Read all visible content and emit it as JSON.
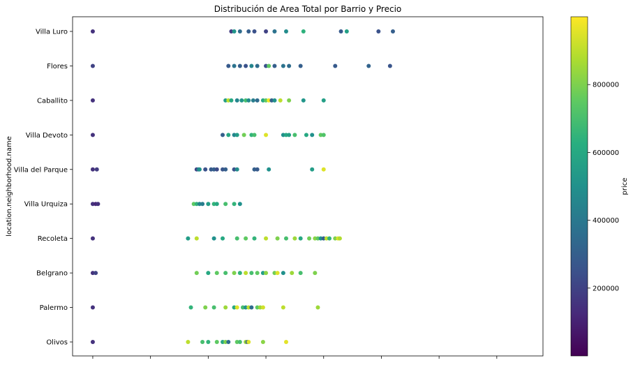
{
  "chart_data": {
    "type": "scatter",
    "title": "Distribución de Area Total por Barrio y Precio",
    "xlabel": "",
    "ylabel": "location.neighborhood.name",
    "x_tick_labels_visible": false,
    "grid": false,
    "categories": [
      "Olivos",
      "Palermo",
      "Belgrano",
      "Recoleta",
      "Villa Urquiza",
      "Villa del Parque",
      "Villa Devoto",
      "Caballito",
      "Flores",
      "Villa Luro"
    ],
    "colorbar": {
      "label": "price",
      "colormap": "viridis",
      "range": [
        0,
        1000000
      ],
      "ticks": [
        200000,
        400000,
        600000,
        800000
      ],
      "tick_labels": [
        "200000",
        "400000",
        "600000",
        "800000"
      ]
    },
    "points": [
      {
        "category": "Villa Luro",
        "x": 0,
        "price": 150000
      },
      {
        "category": "Villa Luro",
        "x": 240,
        "price": 180000
      },
      {
        "category": "Villa Luro",
        "x": 245,
        "price": 520000
      },
      {
        "category": "Villa Luro",
        "x": 255,
        "price": 350000
      },
      {
        "category": "Villa Luro",
        "x": 270,
        "price": 300000
      },
      {
        "category": "Villa Luro",
        "x": 280,
        "price": 250000
      },
      {
        "category": "Villa Luro",
        "x": 300,
        "price": 200000
      },
      {
        "category": "Villa Luro",
        "x": 315,
        "price": 380000
      },
      {
        "category": "Villa Luro",
        "x": 335,
        "price": 480000
      },
      {
        "category": "Villa Luro",
        "x": 365,
        "price": 640000
      },
      {
        "category": "Villa Luro",
        "x": 430,
        "price": 280000
      },
      {
        "category": "Villa Luro",
        "x": 440,
        "price": 560000
      },
      {
        "category": "Villa Luro",
        "x": 495,
        "price": 250000
      },
      {
        "category": "Villa Luro",
        "x": 520,
        "price": 300000
      },
      {
        "category": "Flores",
        "x": 0,
        "price": 200000
      },
      {
        "category": "Flores",
        "x": 235,
        "price": 280000
      },
      {
        "category": "Flores",
        "x": 245,
        "price": 380000
      },
      {
        "category": "Flores",
        "x": 255,
        "price": 300000
      },
      {
        "category": "Flores",
        "x": 265,
        "price": 250000
      },
      {
        "category": "Flores",
        "x": 275,
        "price": 450000
      },
      {
        "category": "Flores",
        "x": 285,
        "price": 350000
      },
      {
        "category": "Flores",
        "x": 300,
        "price": 250000
      },
      {
        "category": "Flores",
        "x": 305,
        "price": 750000
      },
      {
        "category": "Flores",
        "x": 315,
        "price": 300000
      },
      {
        "category": "Flores",
        "x": 330,
        "price": 380000
      },
      {
        "category": "Flores",
        "x": 340,
        "price": 350000
      },
      {
        "category": "Flores",
        "x": 360,
        "price": 300000
      },
      {
        "category": "Flores",
        "x": 420,
        "price": 280000
      },
      {
        "category": "Flores",
        "x": 478,
        "price": 320000
      },
      {
        "category": "Flores",
        "x": 515,
        "price": 260000
      },
      {
        "category": "Caballito",
        "x": 0,
        "price": 150000
      },
      {
        "category": "Caballito",
        "x": 230,
        "price": 550000
      },
      {
        "category": "Caballito",
        "x": 235,
        "price": 900000
      },
      {
        "category": "Caballito",
        "x": 240,
        "price": 600000
      },
      {
        "category": "Caballito",
        "x": 250,
        "price": 450000
      },
      {
        "category": "Caballito",
        "x": 258,
        "price": 520000
      },
      {
        "category": "Caballito",
        "x": 265,
        "price": 700000
      },
      {
        "category": "Caballito",
        "x": 270,
        "price": 480000
      },
      {
        "category": "Caballito",
        "x": 278,
        "price": 420000
      },
      {
        "category": "Caballito",
        "x": 285,
        "price": 350000
      },
      {
        "category": "Caballito",
        "x": 295,
        "price": 600000
      },
      {
        "category": "Caballito",
        "x": 300,
        "price": 750000
      },
      {
        "category": "Caballito",
        "x": 305,
        "price": 980000
      },
      {
        "category": "Caballito",
        "x": 310,
        "price": 300000
      },
      {
        "category": "Caballito",
        "x": 315,
        "price": 500000
      },
      {
        "category": "Caballito",
        "x": 325,
        "price": 900000
      },
      {
        "category": "Caballito",
        "x": 340,
        "price": 800000
      },
      {
        "category": "Caballito",
        "x": 365,
        "price": 520000
      },
      {
        "category": "Caballito",
        "x": 400,
        "price": 560000
      },
      {
        "category": "Villa Devoto",
        "x": 0,
        "price": 150000
      },
      {
        "category": "Villa Devoto",
        "x": 225,
        "price": 300000
      },
      {
        "category": "Villa Devoto",
        "x": 235,
        "price": 600000
      },
      {
        "category": "Villa Devoto",
        "x": 245,
        "price": 450000
      },
      {
        "category": "Villa Devoto",
        "x": 250,
        "price": 550000
      },
      {
        "category": "Villa Devoto",
        "x": 262,
        "price": 780000
      },
      {
        "category": "Villa Devoto",
        "x": 275,
        "price": 650000
      },
      {
        "category": "Villa Devoto",
        "x": 280,
        "price": 700000
      },
      {
        "category": "Villa Devoto",
        "x": 300,
        "price": 950000
      },
      {
        "category": "Villa Devoto",
        "x": 330,
        "price": 500000
      },
      {
        "category": "Villa Devoto",
        "x": 335,
        "price": 600000
      },
      {
        "category": "Villa Devoto",
        "x": 340,
        "price": 560000
      },
      {
        "category": "Villa Devoto",
        "x": 350,
        "price": 700000
      },
      {
        "category": "Villa Devoto",
        "x": 370,
        "price": 600000
      },
      {
        "category": "Villa Devoto",
        "x": 380,
        "price": 500000
      },
      {
        "category": "Villa Devoto",
        "x": 395,
        "price": 750000
      },
      {
        "category": "Villa Devoto",
        "x": 400,
        "price": 720000
      },
      {
        "category": "Villa del Parque",
        "x": 0,
        "price": 150000
      },
      {
        "category": "Villa del Parque",
        "x": 7,
        "price": 180000
      },
      {
        "category": "Villa del Parque",
        "x": 180,
        "price": 200000
      },
      {
        "category": "Villa del Parque",
        "x": 183,
        "price": 400000
      },
      {
        "category": "Villa del Parque",
        "x": 185,
        "price": 500000
      },
      {
        "category": "Villa del Parque",
        "x": 195,
        "price": 250000
      },
      {
        "category": "Villa del Parque",
        "x": 205,
        "price": 280000
      },
      {
        "category": "Villa del Parque",
        "x": 210,
        "price": 300000
      },
      {
        "category": "Villa del Parque",
        "x": 215,
        "price": 230000
      },
      {
        "category": "Villa del Parque",
        "x": 225,
        "price": 260000
      },
      {
        "category": "Villa del Parque",
        "x": 230,
        "price": 300000
      },
      {
        "category": "Villa del Parque",
        "x": 245,
        "price": 250000
      },
      {
        "category": "Villa del Parque",
        "x": 250,
        "price": 480000
      },
      {
        "category": "Villa del Parque",
        "x": 280,
        "price": 300000
      },
      {
        "category": "Villa del Parque",
        "x": 285,
        "price": 280000
      },
      {
        "category": "Villa del Parque",
        "x": 305,
        "price": 500000
      },
      {
        "category": "Villa del Parque",
        "x": 380,
        "price": 550000
      },
      {
        "category": "Villa del Parque",
        "x": 400,
        "price": 950000
      },
      {
        "category": "Villa Urquiza",
        "x": 0,
        "price": 150000
      },
      {
        "category": "Villa Urquiza",
        "x": 5,
        "price": 120000
      },
      {
        "category": "Villa Urquiza",
        "x": 9,
        "price": 150000
      },
      {
        "category": "Villa Urquiza",
        "x": 175,
        "price": 750000
      },
      {
        "category": "Villa Urquiza",
        "x": 180,
        "price": 650000
      },
      {
        "category": "Villa Urquiza",
        "x": 185,
        "price": 450000
      },
      {
        "category": "Villa Urquiza",
        "x": 190,
        "price": 420000
      },
      {
        "category": "Villa Urquiza",
        "x": 200,
        "price": 550000
      },
      {
        "category": "Villa Urquiza",
        "x": 210,
        "price": 650000
      },
      {
        "category": "Villa Urquiza",
        "x": 215,
        "price": 600000
      },
      {
        "category": "Villa Urquiza",
        "x": 230,
        "price": 700000
      },
      {
        "category": "Villa Urquiza",
        "x": 245,
        "price": 650000
      },
      {
        "category": "Villa Urquiza",
        "x": 255,
        "price": 500000
      },
      {
        "category": "Recoleta",
        "x": 0,
        "price": 150000
      },
      {
        "category": "Recoleta",
        "x": 165,
        "price": 550000
      },
      {
        "category": "Recoleta",
        "x": 180,
        "price": 900000
      },
      {
        "category": "Recoleta",
        "x": 210,
        "price": 500000
      },
      {
        "category": "Recoleta",
        "x": 225,
        "price": 600000
      },
      {
        "category": "Recoleta",
        "x": 250,
        "price": 700000
      },
      {
        "category": "Recoleta",
        "x": 265,
        "price": 750000
      },
      {
        "category": "Recoleta",
        "x": 280,
        "price": 650000
      },
      {
        "category": "Recoleta",
        "x": 300,
        "price": 900000
      },
      {
        "category": "Recoleta",
        "x": 320,
        "price": 800000
      },
      {
        "category": "Recoleta",
        "x": 335,
        "price": 700000
      },
      {
        "category": "Recoleta",
        "x": 350,
        "price": 850000
      },
      {
        "category": "Recoleta",
        "x": 360,
        "price": 600000
      },
      {
        "category": "Recoleta",
        "x": 375,
        "price": 780000
      },
      {
        "category": "Recoleta",
        "x": 385,
        "price": 820000
      },
      {
        "category": "Recoleta",
        "x": 390,
        "price": 750000
      },
      {
        "category": "Recoleta",
        "x": 395,
        "price": 500000
      },
      {
        "category": "Recoleta",
        "x": 400,
        "price": 300000
      },
      {
        "category": "Recoleta",
        "x": 405,
        "price": 900000
      },
      {
        "category": "Recoleta",
        "x": 410,
        "price": 650000
      },
      {
        "category": "Recoleta",
        "x": 420,
        "price": 800000
      },
      {
        "category": "Recoleta",
        "x": 425,
        "price": 950000
      },
      {
        "category": "Recoleta",
        "x": 428,
        "price": 880000
      },
      {
        "category": "Belgrano",
        "x": 0,
        "price": 150000
      },
      {
        "category": "Belgrano",
        "x": 5,
        "price": 200000
      },
      {
        "category": "Belgrano",
        "x": 180,
        "price": 780000
      },
      {
        "category": "Belgrano",
        "x": 200,
        "price": 600000
      },
      {
        "category": "Belgrano",
        "x": 215,
        "price": 750000
      },
      {
        "category": "Belgrano",
        "x": 230,
        "price": 700000
      },
      {
        "category": "Belgrano",
        "x": 245,
        "price": 800000
      },
      {
        "category": "Belgrano",
        "x": 255,
        "price": 650000
      },
      {
        "category": "Belgrano",
        "x": 265,
        "price": 900000
      },
      {
        "category": "Belgrano",
        "x": 275,
        "price": 700000
      },
      {
        "category": "Belgrano",
        "x": 285,
        "price": 750000
      },
      {
        "category": "Belgrano",
        "x": 295,
        "price": 550000
      },
      {
        "category": "Belgrano",
        "x": 300,
        "price": 820000
      },
      {
        "category": "Belgrano",
        "x": 315,
        "price": 780000
      },
      {
        "category": "Belgrano",
        "x": 320,
        "price": 950000
      },
      {
        "category": "Belgrano",
        "x": 330,
        "price": 500000
      },
      {
        "category": "Belgrano",
        "x": 345,
        "price": 850000
      },
      {
        "category": "Belgrano",
        "x": 360,
        "price": 700000
      },
      {
        "category": "Belgrano",
        "x": 385,
        "price": 800000
      },
      {
        "category": "Palermo",
        "x": 0,
        "price": 150000
      },
      {
        "category": "Palermo",
        "x": 170,
        "price": 650000
      },
      {
        "category": "Palermo",
        "x": 195,
        "price": 800000
      },
      {
        "category": "Palermo",
        "x": 210,
        "price": 700000
      },
      {
        "category": "Palermo",
        "x": 230,
        "price": 850000
      },
      {
        "category": "Palermo",
        "x": 245,
        "price": 600000
      },
      {
        "category": "Palermo",
        "x": 250,
        "price": 950000
      },
      {
        "category": "Palermo",
        "x": 260,
        "price": 700000
      },
      {
        "category": "Palermo",
        "x": 265,
        "price": 500000
      },
      {
        "category": "Palermo",
        "x": 270,
        "price": 900000
      },
      {
        "category": "Palermo",
        "x": 275,
        "price": 350000
      },
      {
        "category": "Palermo",
        "x": 285,
        "price": 750000
      },
      {
        "category": "Palermo",
        "x": 290,
        "price": 850000
      },
      {
        "category": "Palermo",
        "x": 295,
        "price": 930000
      },
      {
        "category": "Palermo",
        "x": 330,
        "price": 900000
      },
      {
        "category": "Palermo",
        "x": 390,
        "price": 850000
      },
      {
        "category": "Olivos",
        "x": 0,
        "price": 150000
      },
      {
        "category": "Olivos",
        "x": 165,
        "price": 900000
      },
      {
        "category": "Olivos",
        "x": 190,
        "price": 700000
      },
      {
        "category": "Olivos",
        "x": 200,
        "price": 650000
      },
      {
        "category": "Olivos",
        "x": 215,
        "price": 750000
      },
      {
        "category": "Olivos",
        "x": 225,
        "price": 600000
      },
      {
        "category": "Olivos",
        "x": 230,
        "price": 800000
      },
      {
        "category": "Olivos",
        "x": 235,
        "price": 350000
      },
      {
        "category": "Olivos",
        "x": 250,
        "price": 750000
      },
      {
        "category": "Olivos",
        "x": 255,
        "price": 700000
      },
      {
        "category": "Olivos",
        "x": 265,
        "price": 850000
      },
      {
        "category": "Olivos",
        "x": 268,
        "price": 300000
      },
      {
        "category": "Olivos",
        "x": 270,
        "price": 950000
      },
      {
        "category": "Olivos",
        "x": 295,
        "price": 820000
      },
      {
        "category": "Olivos",
        "x": 335,
        "price": 960000
      }
    ]
  }
}
